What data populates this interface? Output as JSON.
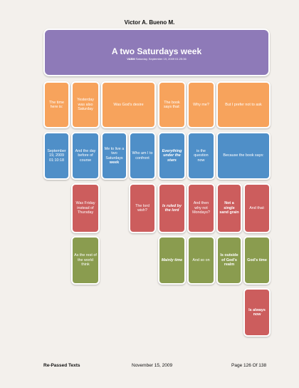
{
  "header": {
    "author": "Victor A. Bueno M."
  },
  "title": {
    "main": "A two Saturdays week",
    "sub_bold": "VABM",
    "sub_rest": " Saturday, September 19, 2009 01:25:36"
  },
  "cells": {
    "r1c1": "The time here is:",
    "r1c2": "Yesterday was also Saturday",
    "r1c3": "Was God's desire",
    "r1c4": "The book says that:",
    "r1c5": "Why me?",
    "r1c6": "But I prefer not to ask",
    "r2c1": "September 19, 2009 01:10:18",
    "r2c2": "And the day before of course",
    "r2c3a": "Me to live a two Saturdays ",
    "r2c3b": "week",
    "r2c4": "Who am I to confront",
    "r2c5": "Everything under the stars",
    "r2c6": "is the question now",
    "r2c7": "Because the book says:",
    "r3c1": "Was Friday instead of Thursday",
    "r3c2": "The lord wish?",
    "r3c3": "Is ruled by the lord",
    "r3c4": "And then why not Mondays?",
    "r3c5": "Not a single sand grain",
    "r3c6": "And that:",
    "r4c1": "As the rest of the world think",
    "r4c2": "Mainly time",
    "r4c3": "And so on",
    "r4c4": "Is outside of God's realm",
    "r4c5": "God's time",
    "r5c1": "Is always now"
  },
  "footer": {
    "left": "Re-Passed Texts",
    "center": "November 15, 2009",
    "right": "Page 126  Of 138"
  },
  "colors": {
    "title": "#8e7ab8",
    "orange": "#f7a35c",
    "blue": "#4f8fc8",
    "red": "#cc5d5d",
    "green": "#8a9c4f"
  }
}
